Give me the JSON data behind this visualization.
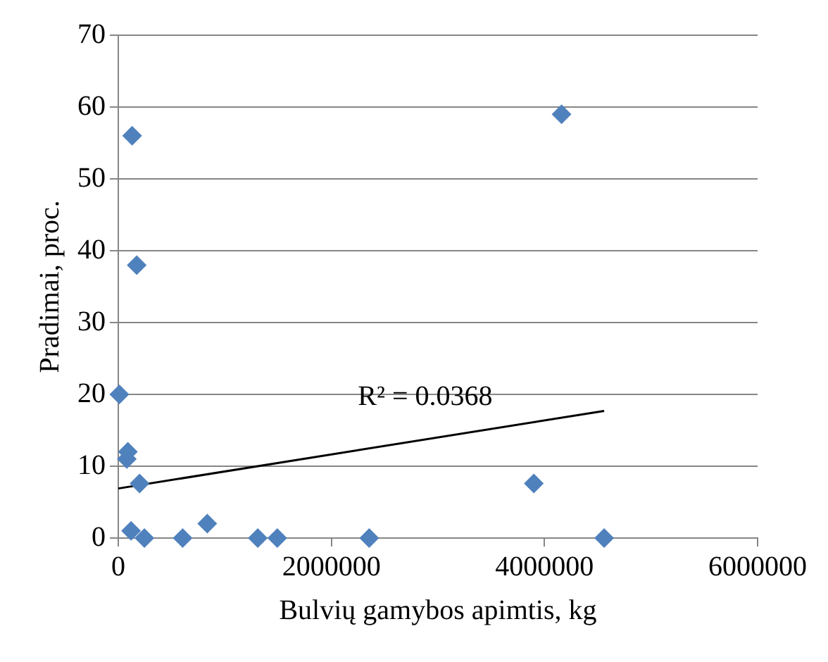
{
  "chart_data": {
    "type": "scatter",
    "xlabel": "Bulvių gamybos apimtis, kg",
    "ylabel": "Pradimai, proc.",
    "xlim": [
      0,
      6000000
    ],
    "xticks": [
      0,
      2000000,
      4000000,
      6000000
    ],
    "ylim": [
      0,
      70
    ],
    "yticks": [
      0,
      10,
      20,
      30,
      40,
      50,
      60,
      70
    ],
    "grid": "y",
    "legend": false,
    "marker": "diamond",
    "series": [
      {
        "color": "#4f81bd",
        "x": [
          130000,
          4160000,
          173000,
          10000,
          80000,
          90000,
          200000,
          3900000,
          4560000,
          245000,
          604000,
          835000,
          1309000,
          1492000,
          2355000,
          120000
        ],
        "values": [
          56,
          59,
          38,
          20,
          11,
          12,
          7.6,
          7.6,
          0,
          0,
          0,
          2,
          0,
          0,
          0,
          1
        ]
      },
      {
        "type": "line",
        "color": "#000000",
        "marker": "none",
        "x": [
          0,
          4560000
        ],
        "values": [
          6.9,
          17.7
        ]
      }
    ],
    "annotations": [
      "R² = 0.0368"
    ]
  }
}
